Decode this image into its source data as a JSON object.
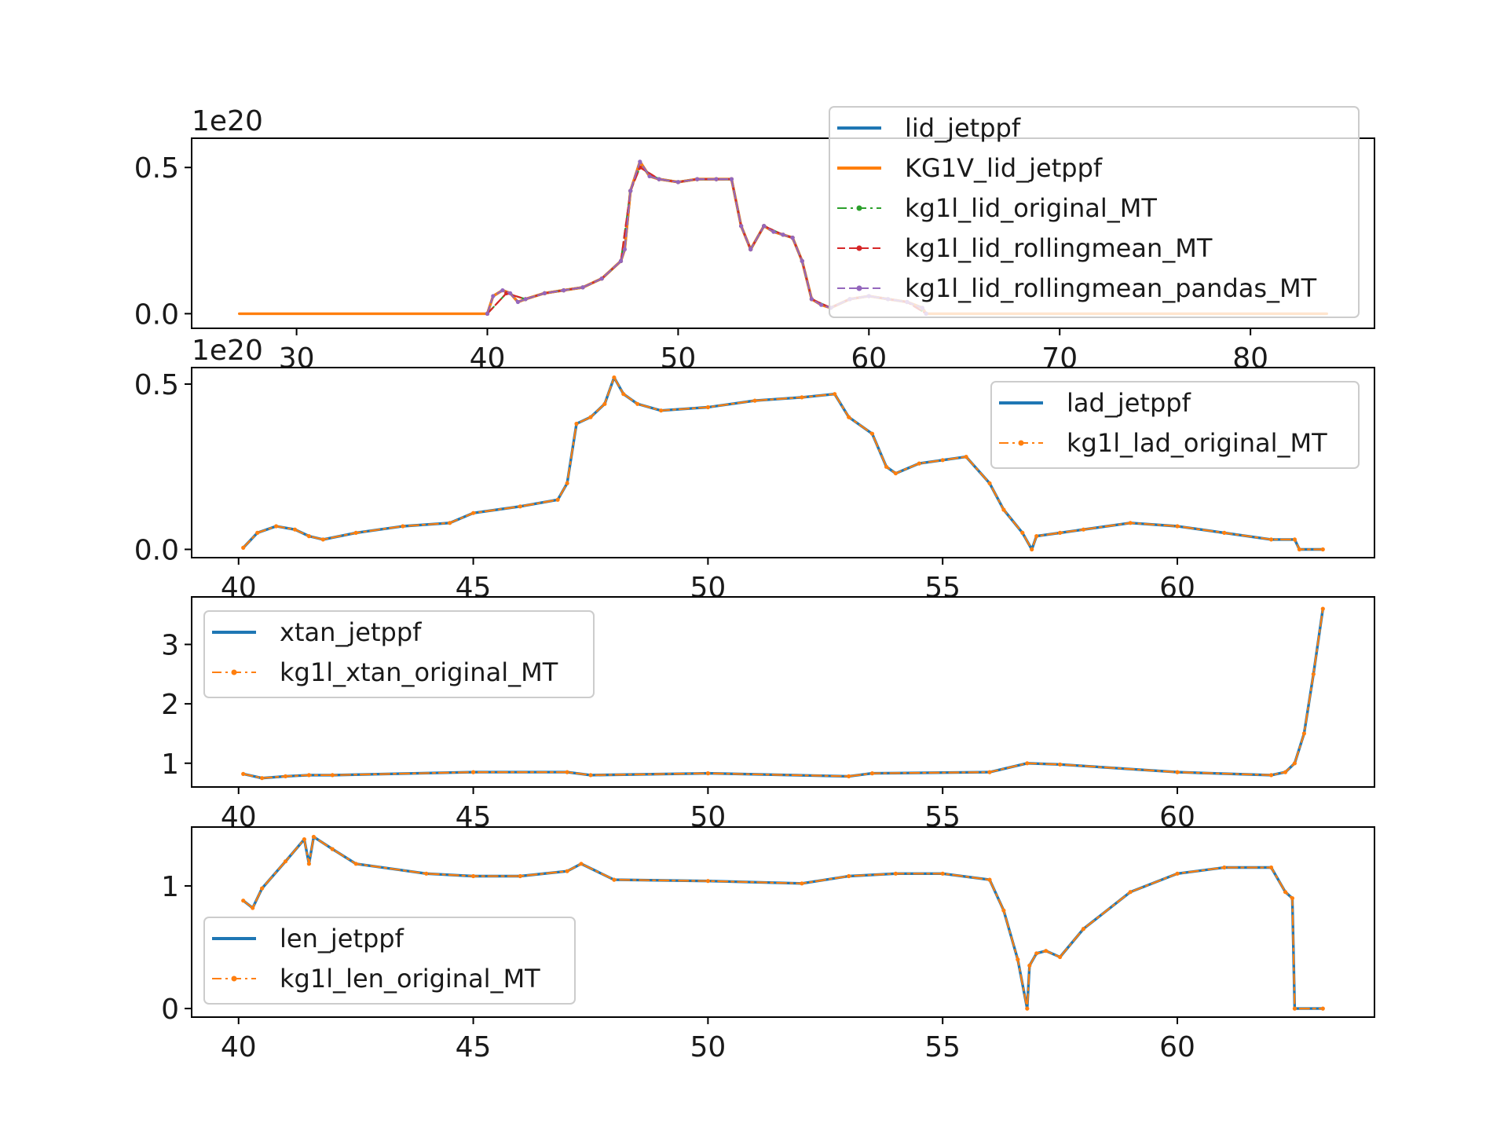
{
  "chart_data": [
    {
      "type": "line",
      "offset_label": "1e20",
      "xlim": [
        24.5,
        86.5
      ],
      "ylim": [
        -0.05,
        0.6
      ],
      "xticks": [
        30,
        40,
        50,
        60,
        70,
        80
      ],
      "yticks": [
        0.0,
        0.5
      ],
      "xtick_labels": [
        "30",
        "40",
        "50",
        "60",
        "70",
        "80"
      ],
      "ytick_labels": [
        "0.0",
        "0.5"
      ],
      "legend_position": "upper right",
      "series": [
        {
          "name": "lid_jetppf",
          "color": "#1f77b4",
          "style": "solid",
          "x": [
            40.0,
            40.3,
            40.8,
            41.2,
            41.6,
            42.0,
            43.0,
            44.0,
            45.0,
            46.0,
            47.0,
            47.2,
            47.5,
            48.0,
            48.5,
            49.0,
            50.0,
            51.0,
            52.0,
            52.8,
            53.3,
            53.8,
            54.5,
            55.0,
            55.5,
            56.0,
            56.5,
            57.0,
            57.5,
            58.0,
            59.0,
            60.0,
            61.0,
            62.0,
            62.8,
            63.0
          ],
          "y": [
            0.0,
            0.06,
            0.08,
            0.07,
            0.04,
            0.05,
            0.07,
            0.08,
            0.09,
            0.12,
            0.18,
            0.22,
            0.42,
            0.52,
            0.47,
            0.46,
            0.45,
            0.46,
            0.46,
            0.46,
            0.3,
            0.22,
            0.3,
            0.28,
            0.27,
            0.26,
            0.18,
            0.05,
            0.03,
            0.02,
            0.05,
            0.06,
            0.05,
            0.04,
            0.02,
            0.0
          ]
        },
        {
          "name": "KG1V_lid_jetppf",
          "color": "#ff7f0e",
          "style": "solid",
          "x": [
            27.0,
            30.0,
            35.0,
            40.0,
            40.3,
            40.8,
            41.2,
            41.6,
            42.0,
            43.0,
            44.0,
            45.0,
            46.0,
            47.0,
            47.2,
            47.5,
            48.0,
            48.5,
            49.0,
            50.0,
            51.0,
            52.0,
            52.8,
            53.3,
            53.8,
            54.5,
            55.0,
            55.5,
            56.0,
            56.5,
            57.0,
            57.5,
            58.0,
            59.0,
            60.0,
            61.0,
            62.0,
            62.8,
            63.0,
            65.0,
            70.0,
            75.0,
            80.0,
            84.0
          ],
          "y": [
            0.0,
            0.0,
            0.0,
            0.0,
            0.06,
            0.08,
            0.07,
            0.04,
            0.05,
            0.07,
            0.08,
            0.09,
            0.12,
            0.18,
            0.22,
            0.42,
            0.52,
            0.47,
            0.46,
            0.45,
            0.46,
            0.46,
            0.46,
            0.3,
            0.22,
            0.3,
            0.28,
            0.27,
            0.26,
            0.18,
            0.05,
            0.03,
            0.02,
            0.05,
            0.06,
            0.05,
            0.04,
            0.02,
            0.0,
            0.0,
            0.0,
            0.0,
            0.0,
            0.0
          ]
        },
        {
          "name": "kg1l_lid_original_MT",
          "color": "#2ca02c",
          "style": "dash-dot",
          "x": [
            40.0,
            41.0,
            42.0,
            43.0,
            44.0,
            45.0,
            46.0,
            47.0,
            47.5,
            48.0,
            49.0,
            50.0,
            51.0,
            52.0,
            52.8,
            53.3,
            53.8,
            54.5,
            55.5,
            56.0,
            56.5,
            57.0,
            58.0,
            59.0,
            60.0,
            61.0,
            62.0,
            63.0
          ],
          "y": [
            0.0,
            0.07,
            0.05,
            0.07,
            0.08,
            0.09,
            0.12,
            0.18,
            0.42,
            0.5,
            0.46,
            0.45,
            0.46,
            0.46,
            0.46,
            0.3,
            0.22,
            0.3,
            0.27,
            0.26,
            0.18,
            0.05,
            0.02,
            0.05,
            0.06,
            0.05,
            0.04,
            0.0
          ]
        },
        {
          "name": "kg1l_lid_rollingmean_MT",
          "color": "#d62728",
          "style": "dashed",
          "x": [
            40.0,
            41.0,
            42.0,
            43.0,
            44.0,
            45.0,
            46.0,
            47.0,
            47.5,
            48.0,
            49.0,
            50.0,
            51.0,
            52.0,
            52.8,
            53.3,
            53.8,
            54.5,
            55.5,
            56.0,
            56.5,
            57.0,
            58.0,
            59.0,
            60.0,
            61.0,
            62.0,
            63.0
          ],
          "y": [
            0.0,
            0.07,
            0.05,
            0.07,
            0.08,
            0.09,
            0.12,
            0.18,
            0.42,
            0.5,
            0.46,
            0.45,
            0.46,
            0.46,
            0.46,
            0.3,
            0.22,
            0.3,
            0.27,
            0.26,
            0.18,
            0.05,
            0.02,
            0.05,
            0.06,
            0.05,
            0.04,
            0.0
          ]
        },
        {
          "name": "kg1l_lid_rollingmean_pandas_MT",
          "color": "#9467bd",
          "style": "dashed",
          "x": [
            40.0,
            40.3,
            40.8,
            41.2,
            41.6,
            42.0,
            43.0,
            44.0,
            45.0,
            46.0,
            47.0,
            47.2,
            47.5,
            48.0,
            48.5,
            49.0,
            50.0,
            51.0,
            52.0,
            52.8,
            53.3,
            53.8,
            54.5,
            55.0,
            55.5,
            56.0,
            56.5,
            57.0,
            57.5,
            58.0,
            59.0,
            60.0,
            61.0,
            62.0,
            62.8,
            63.0
          ],
          "y": [
            0.0,
            0.06,
            0.08,
            0.07,
            0.04,
            0.05,
            0.07,
            0.08,
            0.09,
            0.12,
            0.18,
            0.22,
            0.42,
            0.52,
            0.47,
            0.46,
            0.45,
            0.46,
            0.46,
            0.46,
            0.3,
            0.22,
            0.3,
            0.28,
            0.27,
            0.26,
            0.18,
            0.05,
            0.03,
            0.02,
            0.05,
            0.06,
            0.05,
            0.04,
            0.02,
            0.0
          ]
        }
      ]
    },
    {
      "type": "line",
      "offset_label": "1e20",
      "xlim": [
        39.0,
        64.2
      ],
      "ylim": [
        -0.025,
        0.55
      ],
      "xticks": [
        40,
        45,
        50,
        55,
        60
      ],
      "yticks": [
        0.0,
        0.5
      ],
      "xtick_labels": [
        "40",
        "45",
        "50",
        "55",
        "60"
      ],
      "ytick_labels": [
        "0.0",
        "0.5"
      ],
      "legend_position": "upper right",
      "series": [
        {
          "name": "lad_jetppf",
          "color": "#1f77b4",
          "style": "solid",
          "x": [
            40.1,
            40.4,
            40.8,
            41.2,
            41.5,
            41.8,
            42.5,
            43.5,
            44.5,
            45.0,
            46.0,
            46.8,
            47.0,
            47.2,
            47.5,
            47.8,
            48.0,
            48.2,
            48.5,
            49.0,
            50.0,
            51.0,
            52.0,
            52.7,
            53.0,
            53.5,
            53.8,
            54.0,
            54.5,
            55.0,
            55.5,
            56.0,
            56.3,
            56.7,
            56.9,
            57.0,
            57.5,
            58.0,
            59.0,
            60.0,
            61.0,
            62.0,
            62.5,
            62.6,
            63.1
          ],
          "y": [
            0.005,
            0.05,
            0.07,
            0.06,
            0.04,
            0.03,
            0.05,
            0.07,
            0.08,
            0.11,
            0.13,
            0.15,
            0.2,
            0.38,
            0.4,
            0.44,
            0.52,
            0.47,
            0.44,
            0.42,
            0.43,
            0.45,
            0.46,
            0.47,
            0.4,
            0.35,
            0.25,
            0.23,
            0.26,
            0.27,
            0.28,
            0.2,
            0.12,
            0.05,
            0.0,
            0.04,
            0.05,
            0.06,
            0.08,
            0.07,
            0.05,
            0.03,
            0.03,
            0.0,
            0.0
          ]
        },
        {
          "name": "kg1l_lad_original_MT",
          "color": "#ff7f0e",
          "style": "dash-dot",
          "x": [
            40.1,
            40.4,
            40.8,
            41.2,
            41.5,
            41.8,
            42.5,
            43.5,
            44.5,
            45.0,
            46.0,
            46.8,
            47.0,
            47.2,
            47.5,
            47.8,
            48.0,
            48.2,
            48.5,
            49.0,
            50.0,
            51.0,
            52.0,
            52.7,
            53.0,
            53.5,
            53.8,
            54.0,
            54.5,
            55.0,
            55.5,
            56.0,
            56.3,
            56.7,
            56.9,
            57.0,
            57.5,
            58.0,
            59.0,
            60.0,
            61.0,
            62.0,
            62.5,
            62.6,
            63.1
          ],
          "y": [
            0.005,
            0.05,
            0.07,
            0.06,
            0.04,
            0.03,
            0.05,
            0.07,
            0.08,
            0.11,
            0.13,
            0.15,
            0.2,
            0.38,
            0.4,
            0.44,
            0.52,
            0.47,
            0.44,
            0.42,
            0.43,
            0.45,
            0.46,
            0.47,
            0.4,
            0.35,
            0.25,
            0.23,
            0.26,
            0.27,
            0.28,
            0.2,
            0.12,
            0.05,
            0.0,
            0.04,
            0.05,
            0.06,
            0.08,
            0.07,
            0.05,
            0.03,
            0.03,
            0.0,
            0.0
          ]
        }
      ]
    },
    {
      "type": "line",
      "offset_label": "",
      "xlim": [
        39.0,
        64.2
      ],
      "ylim": [
        0.6,
        3.8
      ],
      "xticks": [
        40,
        45,
        50,
        55,
        60
      ],
      "yticks": [
        1,
        2,
        3
      ],
      "xtick_labels": [
        "40",
        "45",
        "50",
        "55",
        "60"
      ],
      "ytick_labels": [
        "1",
        "2",
        "3"
      ],
      "legend_position": "upper left",
      "series": [
        {
          "name": "xtan_jetppf",
          "color": "#1f77b4",
          "style": "solid",
          "x": [
            40.1,
            40.5,
            41.0,
            41.5,
            42.0,
            45.0,
            47.0,
            47.5,
            50.0,
            53.0,
            53.5,
            56.0,
            56.8,
            57.5,
            60.0,
            62.0,
            62.3,
            62.5,
            62.7,
            62.9,
            63.1
          ],
          "y": [
            0.82,
            0.75,
            0.78,
            0.8,
            0.8,
            0.85,
            0.85,
            0.8,
            0.83,
            0.78,
            0.83,
            0.85,
            1.0,
            0.98,
            0.85,
            0.8,
            0.85,
            1.0,
            1.5,
            2.5,
            3.6
          ]
        },
        {
          "name": "kg1l_xtan_original_MT",
          "color": "#ff7f0e",
          "style": "dash-dot",
          "x": [
            40.1,
            40.5,
            41.0,
            41.5,
            42.0,
            45.0,
            47.0,
            47.5,
            50.0,
            53.0,
            53.5,
            56.0,
            56.8,
            57.5,
            60.0,
            62.0,
            62.3,
            62.5,
            62.7,
            62.9,
            63.1
          ],
          "y": [
            0.82,
            0.75,
            0.78,
            0.8,
            0.8,
            0.85,
            0.85,
            0.8,
            0.83,
            0.78,
            0.83,
            0.85,
            1.0,
            0.98,
            0.85,
            0.8,
            0.85,
            1.0,
            1.5,
            2.5,
            3.6
          ]
        }
      ]
    },
    {
      "type": "line",
      "offset_label": "",
      "xlim": [
        39.0,
        64.2
      ],
      "ylim": [
        -0.07,
        1.48
      ],
      "xticks": [
        40,
        45,
        50,
        55,
        60
      ],
      "yticks": [
        0,
        1
      ],
      "xtick_labels": [
        "40",
        "45",
        "50",
        "55",
        "60"
      ],
      "ytick_labels": [
        "0",
        "1"
      ],
      "legend_position": "lower left",
      "series": [
        {
          "name": "len_jetppf",
          "color": "#1f77b4",
          "style": "solid",
          "x": [
            40.1,
            40.3,
            40.5,
            41.0,
            41.4,
            41.5,
            41.6,
            42.0,
            42.5,
            44.0,
            45.0,
            46.0,
            47.0,
            47.3,
            48.0,
            50.0,
            52.0,
            53.0,
            54.0,
            55.0,
            56.0,
            56.3,
            56.6,
            56.8,
            56.85,
            57.0,
            57.2,
            57.5,
            58.0,
            59.0,
            60.0,
            61.0,
            62.0,
            62.3,
            62.45,
            62.5,
            63.1
          ],
          "y": [
            0.88,
            0.82,
            0.98,
            1.2,
            1.38,
            1.18,
            1.4,
            1.3,
            1.18,
            1.1,
            1.08,
            1.08,
            1.12,
            1.18,
            1.05,
            1.04,
            1.02,
            1.08,
            1.1,
            1.1,
            1.05,
            0.8,
            0.4,
            0.0,
            0.35,
            0.45,
            0.47,
            0.42,
            0.65,
            0.95,
            1.1,
            1.15,
            1.15,
            0.95,
            0.9,
            0.0,
            0.0
          ]
        },
        {
          "name": "kg1l_len_original_MT",
          "color": "#ff7f0e",
          "style": "dash-dot",
          "x": [
            40.1,
            40.3,
            40.5,
            41.0,
            41.4,
            41.5,
            41.6,
            42.0,
            42.5,
            44.0,
            45.0,
            46.0,
            47.0,
            47.3,
            48.0,
            50.0,
            52.0,
            53.0,
            54.0,
            55.0,
            56.0,
            56.3,
            56.6,
            56.8,
            56.85,
            57.0,
            57.2,
            57.5,
            58.0,
            59.0,
            60.0,
            61.0,
            62.0,
            62.3,
            62.45,
            62.5,
            63.1
          ],
          "y": [
            0.88,
            0.82,
            0.98,
            1.2,
            1.38,
            1.18,
            1.4,
            1.3,
            1.18,
            1.1,
            1.08,
            1.08,
            1.12,
            1.18,
            1.05,
            1.04,
            1.02,
            1.08,
            1.1,
            1.1,
            1.05,
            0.8,
            0.4,
            0.0,
            0.35,
            0.45,
            0.47,
            0.42,
            0.65,
            0.95,
            1.1,
            1.15,
            1.15,
            0.95,
            0.9,
            0.0,
            0.0
          ]
        }
      ]
    }
  ]
}
